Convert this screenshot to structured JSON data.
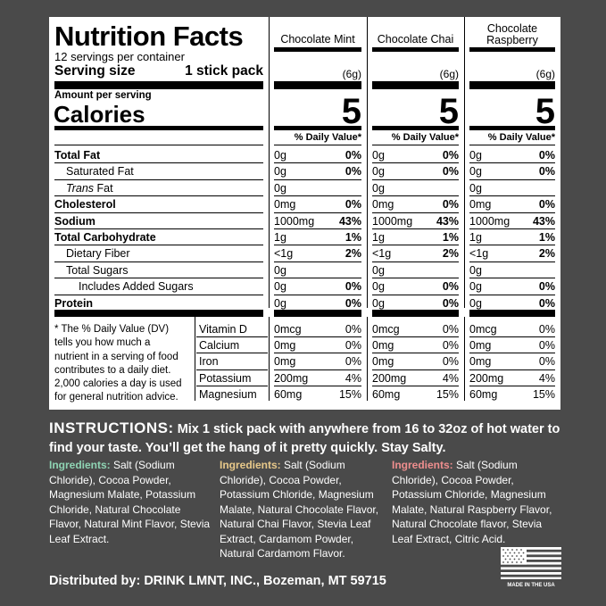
{
  "panel": {
    "title": "Nutrition Facts",
    "servings": "12 servings per container",
    "serving_size_label": "Serving size",
    "serving_size_value": "1 stick pack",
    "amount_per_serving": "Amount per serving",
    "calories_label": "Calories",
    "flavors": [
      {
        "name": "Chocolate Mint",
        "weight": "(6g)",
        "calories": "5",
        "dv_header": "% Daily Value*"
      },
      {
        "name": "Chocolate Chai",
        "weight": "(6g)",
        "calories": "5",
        "dv_header": "% Daily Value*"
      },
      {
        "name": "Chocolate Raspberry",
        "weight": "(6g)",
        "calories": "5",
        "dv_header": "% Daily Value*"
      }
    ],
    "nutrients": [
      {
        "label": "Total Fat",
        "bold": true,
        "indent": 0,
        "values": [
          [
            "0g",
            "0%"
          ],
          [
            "0g",
            "0%"
          ],
          [
            "0g",
            "0%"
          ]
        ]
      },
      {
        "label": "Saturated Fat",
        "bold": false,
        "indent": 1,
        "values": [
          [
            "0g",
            "0%"
          ],
          [
            "0g",
            "0%"
          ],
          [
            "0g",
            "0%"
          ]
        ]
      },
      {
        "label_italic": "Trans",
        "label": " Fat",
        "bold": false,
        "indent": 1,
        "values": [
          [
            "0g",
            ""
          ],
          [
            "0g",
            ""
          ],
          [
            "0g",
            ""
          ]
        ]
      },
      {
        "label": "Cholesterol",
        "bold": true,
        "indent": 0,
        "values": [
          [
            "0mg",
            "0%"
          ],
          [
            "0mg",
            "0%"
          ],
          [
            "0mg",
            "0%"
          ]
        ]
      },
      {
        "label": "Sodium",
        "bold": true,
        "indent": 0,
        "values": [
          [
            "1000mg",
            "43%"
          ],
          [
            "1000mg",
            "43%"
          ],
          [
            "1000mg",
            "43%"
          ]
        ]
      },
      {
        "label": "Total Carbohydrate",
        "bold": true,
        "indent": 0,
        "values": [
          [
            "1g",
            "1%"
          ],
          [
            "1g",
            "1%"
          ],
          [
            "1g",
            "1%"
          ]
        ]
      },
      {
        "label": "Dietary Fiber",
        "bold": false,
        "indent": 1,
        "values": [
          [
            "<1g",
            "2%"
          ],
          [
            "<1g",
            "2%"
          ],
          [
            "<1g",
            "2%"
          ]
        ]
      },
      {
        "label": "Total Sugars",
        "bold": false,
        "indent": 1,
        "values": [
          [
            "0g",
            ""
          ],
          [
            "0g",
            ""
          ],
          [
            "0g",
            ""
          ]
        ]
      },
      {
        "label": "Includes Added Sugars",
        "bold": false,
        "indent": 2,
        "values": [
          [
            "0g",
            "0%"
          ],
          [
            "0g",
            "0%"
          ],
          [
            "0g",
            "0%"
          ]
        ]
      },
      {
        "label": "Protein",
        "bold": true,
        "indent": 0,
        "values": [
          [
            "0g",
            "0%"
          ],
          [
            "0g",
            "0%"
          ],
          [
            "0g",
            "0%"
          ]
        ]
      }
    ],
    "footnote": [
      "* The % Daily Value (DV)",
      "tells you how much a",
      "nutrient in a serving of food",
      "contributes to a daily diet.",
      "2,000 calories a day is used",
      "for general nutrition advice."
    ],
    "vitamins": [
      {
        "label": "Vitamin D",
        "values": [
          [
            "0mcg",
            "0%"
          ],
          [
            "0mcg",
            "0%"
          ],
          [
            "0mcg",
            "0%"
          ]
        ]
      },
      {
        "label": "Calcium",
        "values": [
          [
            "0mg",
            "0%"
          ],
          [
            "0mg",
            "0%"
          ],
          [
            "0mg",
            "0%"
          ]
        ]
      },
      {
        "label": "Iron",
        "values": [
          [
            "0mg",
            "0%"
          ],
          [
            "0mg",
            "0%"
          ],
          [
            "0mg",
            "0%"
          ]
        ]
      },
      {
        "label": "Potassium",
        "values": [
          [
            "200mg",
            "4%"
          ],
          [
            "200mg",
            "4%"
          ],
          [
            "200mg",
            "4%"
          ]
        ]
      },
      {
        "label": "Magnesium",
        "values": [
          [
            "60mg",
            "15%"
          ],
          [
            "60mg",
            "15%"
          ],
          [
            "60mg",
            "15%"
          ]
        ]
      }
    ]
  },
  "instructions": {
    "lead": "INSTRUCTIONS:",
    "text": " Mix 1 stick pack with anywhere from 16 to 32oz of hot water to find your taste. You’ll get the hang of it pretty quickly. Stay Salty."
  },
  "ingredients": [
    {
      "label": "Ingredients:",
      "text": " Salt (Sodium Chloride), Cocoa Powder, Magnesium Malate, Potassium Chloride, Natural Chocolate Flavor, Natural Mint Flavor, Stevia Leaf Extract.",
      "color": "#8fd4b4"
    },
    {
      "label": "Ingredients:",
      "text": " Salt (Sodium Chloride), Cocoa Powder, Potassium Chloride, Magnesium Malate, Natural Chocolate Flavor, Natural Chai Flavor, Stevia Leaf Extract, Cardamom Powder, Natural Cardamom Flavor.",
      "color": "#e8c98a"
    },
    {
      "label": "Ingredients:",
      "text": " Salt (Sodium Chloride), Cocoa Powder, Potassium Chloride, Magnesium Malate, Natural Raspberry Flavor, Natural Chocolate flavor, Stevia Leaf Extract, Citric Acid.",
      "color": "#ee8e8e"
    }
  ],
  "distributor": "Distributed by:  DRINK LMNT, INC., Bozeman, MT 59715",
  "badge": {
    "text": "MADE IN THE USA",
    "icon": "us-flag-icon"
  }
}
